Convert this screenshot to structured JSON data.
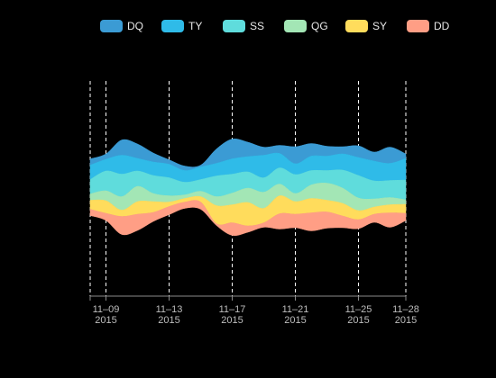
{
  "chart_data": {
    "type": "streamgraph",
    "legend_position": "top-center",
    "background": "#000000",
    "x": [
      "2015-11-08",
      "2015-11-09",
      "2015-11-10",
      "2015-11-11",
      "2015-11-12",
      "2015-11-13",
      "2015-11-14",
      "2015-11-15",
      "2015-11-16",
      "2015-11-17",
      "2015-11-18",
      "2015-11-19",
      "2015-11-20",
      "2015-11-21",
      "2015-11-22",
      "2015-11-23",
      "2015-11-24",
      "2015-11-25",
      "2015-11-26",
      "2015-11-27",
      "2015-11-28"
    ],
    "x_ticks": [
      {
        "date": "2015-11-08",
        "line1": "",
        "line2": ""
      },
      {
        "date": "2015-11-09",
        "line1": "11–09",
        "line2": "2015"
      },
      {
        "date": "2015-11-13",
        "line1": "11–13",
        "line2": "2015"
      },
      {
        "date": "2015-11-17",
        "line1": "11–17",
        "line2": "2015"
      },
      {
        "date": "2015-11-21",
        "line1": "11–21",
        "line2": "2015"
      },
      {
        "date": "2015-11-25",
        "line1": "11–25",
        "line2": "2015"
      },
      {
        "date": "2015-11-28",
        "line1": "11–28",
        "line2": "2015"
      }
    ],
    "series": [
      {
        "name": "DQ",
        "color": "#3b9bd4",
        "values": [
          14,
          12,
          34,
          32,
          20,
          10,
          10,
          4,
          32,
          44,
          32,
          18,
          18,
          38,
          28,
          22,
          16,
          26,
          20,
          36,
          10
        ]
      },
      {
        "name": "TY",
        "color": "#2fbbe8",
        "values": [
          32,
          26,
          42,
          28,
          30,
          30,
          26,
          28,
          28,
          34,
          34,
          50,
          32,
          24,
          32,
          32,
          36,
          40,
          44,
          38,
          48
        ]
      },
      {
        "name": "SS",
        "color": "#5fdcdc",
        "values": [
          32,
          44,
          50,
          34,
          40,
          40,
          28,
          26,
          46,
          42,
          36,
          32,
          36,
          42,
          32,
          28,
          40,
          50,
          40,
          38,
          44
        ]
      },
      {
        "name": "QG",
        "color": "#a3e6b5",
        "values": [
          14,
          22,
          30,
          34,
          18,
          14,
          8,
          12,
          20,
          26,
          32,
          36,
          26,
          18,
          30,
          38,
          34,
          28,
          18,
          16,
          10
        ]
      },
      {
        "name": "SY",
        "color": "#ffdc5c",
        "values": [
          20,
          28,
          14,
          28,
          24,
          10,
          8,
          12,
          40,
          40,
          52,
          32,
          40,
          28,
          32,
          26,
          28,
          20,
          16,
          18,
          20
        ]
      },
      {
        "name": "DD",
        "color": "#ff9e85",
        "values": [
          14,
          16,
          40,
          36,
          20,
          18,
          14,
          16,
          4,
          28,
          14,
          10,
          34,
          30,
          40,
          36,
          26,
          20,
          18,
          32,
          16
        ]
      }
    ]
  }
}
